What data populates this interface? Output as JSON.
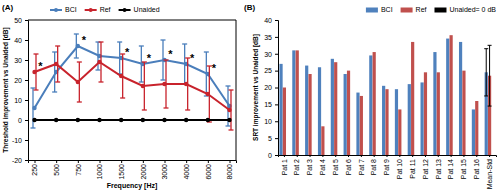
{
  "chart_data": [
    {
      "type": "line",
      "title": "(A)",
      "x_label": "Frequency [Hz]",
      "y_label": "Threshold improvement vs Unaided [dB]",
      "categories": [
        "250",
        "500",
        "750",
        "1000",
        "1500",
        "2000",
        "3000",
        "4000",
        "6000",
        "8000"
      ],
      "series": [
        {
          "name": "BCI",
          "color": "#4a7ebb",
          "marker": "circle",
          "values": [
            6,
            24,
            37,
            32,
            31,
            28,
            30,
            28,
            23,
            7
          ],
          "errors": [
            10,
            10,
            6,
            7,
            8,
            9,
            10,
            10,
            11,
            10
          ]
        },
        {
          "name": "Ref",
          "color": "#c8232c",
          "marker": "circle",
          "values": [
            24,
            28,
            19,
            29,
            22,
            17,
            18,
            18,
            13,
            5
          ],
          "errors": [
            9,
            9,
            10,
            10,
            11,
            12,
            12,
            13,
            14,
            10
          ]
        },
        {
          "name": "Unaided",
          "color": "#000000",
          "marker": "circle",
          "values": [
            0,
            0,
            0,
            0,
            0,
            0,
            0,
            0,
            0,
            0
          ]
        }
      ],
      "ylim": [
        -20,
        50
      ],
      "yticks": [
        -20,
        -10,
        0,
        10,
        20,
        30,
        40,
        50
      ],
      "legend": "upper left",
      "annotations": [
        {
          "category": "250",
          "text": "*"
        },
        {
          "category": "750",
          "text": "*"
        },
        {
          "category": "1500",
          "text": "*"
        },
        {
          "category": "2000",
          "text": "*"
        },
        {
          "category": "3000",
          "text": "*"
        },
        {
          "category": "4000",
          "text": "*"
        },
        {
          "category": "6000",
          "text": "*"
        }
      ]
    },
    {
      "type": "bar",
      "title": "(B)",
      "y_label": "SRT improvement vs Unaided [dB]",
      "categories": [
        "Pat 1",
        "Pat 2",
        "Pat 3",
        "Pat 4",
        "Pat 5",
        "Pat 6",
        "Pat 7",
        "Pat 8",
        "Pat 9",
        "Pat 10",
        "Pat 11",
        "Pat 12",
        "Pat 13",
        "Pat 14",
        "Pat 15",
        "Pat 16",
        "Mean-Std"
      ],
      "series": [
        {
          "name": "BCI",
          "color": "#4f81bd",
          "values": [
            27,
            31,
            26.5,
            26,
            28.5,
            24,
            18.5,
            29.5,
            20.5,
            19.5,
            21,
            21.5,
            30.5,
            34.5,
            33.5,
            13.5,
            24.5
          ],
          "errors": [
            null,
            null,
            null,
            null,
            null,
            null,
            null,
            null,
            null,
            null,
            null,
            null,
            null,
            null,
            null,
            null,
            7
          ]
        },
        {
          "name": "Ref",
          "color": "#c0504d",
          "values": [
            20,
            31,
            24,
            8.5,
            27.5,
            25,
            17.5,
            30.5,
            19.5,
            13.5,
            33.5,
            24.5,
            24.5,
            35.5,
            25,
            16,
            23.5
          ],
          "errors": [
            null,
            null,
            null,
            null,
            null,
            null,
            null,
            null,
            null,
            null,
            null,
            null,
            null,
            null,
            null,
            null,
            9
          ]
        },
        {
          "name": "Unaided= 0 dB",
          "color": "#000000",
          "values": [
            0,
            0,
            0,
            0,
            0,
            0,
            0,
            0,
            0,
            0,
            0,
            0,
            0,
            0,
            0,
            0,
            0
          ]
        }
      ],
      "ylim": [
        0,
        40
      ],
      "yticks": [
        0,
        5,
        10,
        15,
        20,
        25,
        30,
        35,
        40
      ],
      "legend": "upper right"
    }
  ]
}
